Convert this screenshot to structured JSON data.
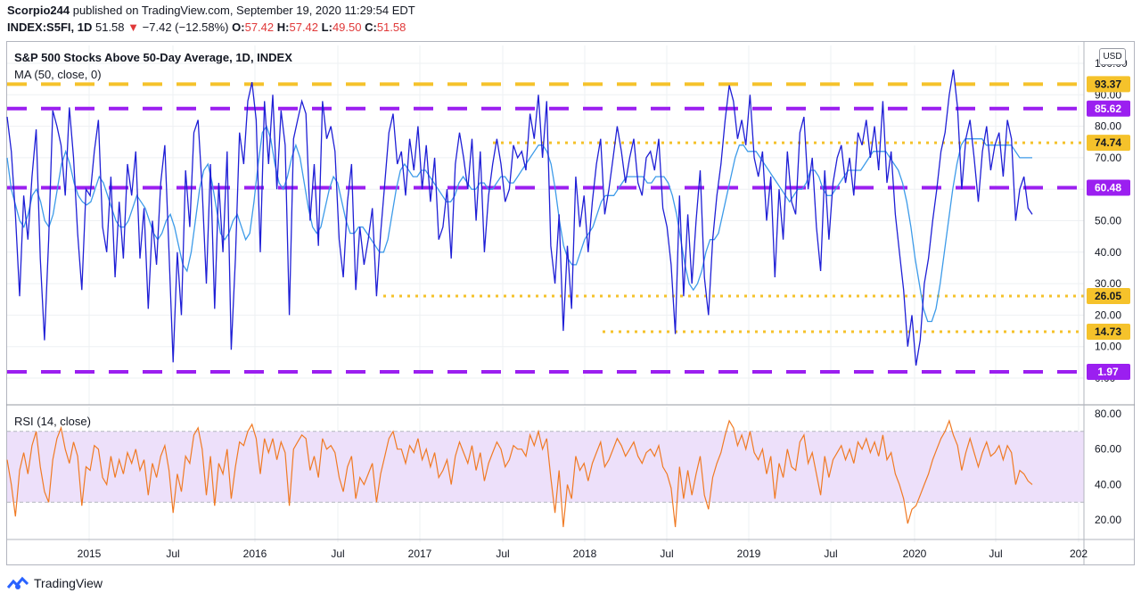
{
  "header": {
    "author": "Scorpio244",
    "published_text": "published on TradingView.com, September 19, 2020 11:29:54 EDT",
    "symbol": "INDEX:S5FI, 1D",
    "last": "51.58",
    "change_arrow": "▼",
    "change": "−7.42 (−12.58%)",
    "o_label": "O:",
    "o": "57.42",
    "h_label": "H:",
    "h": "57.42",
    "l_label": "L:",
    "l": "49.50",
    "c_label": "C:",
    "c": "51.58"
  },
  "legend": {
    "title": "S&P 500 Stocks Above 50-Day Average, 1D, INDEX",
    "ma": "MA (50, close, 0)",
    "rsi": "RSI (14, close)"
  },
  "currency": "USD",
  "footer": {
    "brand": "TradingView"
  },
  "colors": {
    "price": "#1f1fd6",
    "ma": "#3d9be9",
    "rsi": "#f07a24",
    "purple": "#9b1ff0",
    "gold": "#f5c22b",
    "rsi_band": "#ede0fa"
  },
  "chart_data": [
    {
      "type": "line",
      "title": "S&P 500 Stocks Above 50-Day Average, 1D, INDEX",
      "ylim": [
        0,
        100
      ],
      "y_ticks": [
        "100.00",
        "90.00",
        "80.00",
        "70.00",
        "60.00",
        "50.00",
        "40.00",
        "30.00",
        "20.00",
        "10.00",
        "0.00"
      ],
      "x_ticks": [
        "2015",
        "Jul",
        "2016",
        "Jul",
        "2017",
        "Jul",
        "2018",
        "Jul",
        "2019",
        "Jul",
        "2020",
        "Jul",
        "202"
      ],
      "horizontal_levels": [
        {
          "value": 93.37,
          "label": "93.37",
          "color": "#f5c22b",
          "style": "dashed"
        },
        {
          "value": 85.62,
          "label": "85.62",
          "color": "#9b1ff0",
          "style": "dashed"
        },
        {
          "value": 74.74,
          "label": "74.74",
          "color": "#f5c22b",
          "style": "dotted"
        },
        {
          "value": 60.48,
          "label": "60.48",
          "color": "#9b1ff0",
          "style": "dashed"
        },
        {
          "value": 26.05,
          "label": "26.05",
          "color": "#f5c22b",
          "style": "dotted"
        },
        {
          "value": 14.73,
          "label": "14.73",
          "color": "#f5c22b",
          "style": "dotted"
        },
        {
          "value": 1.97,
          "label": "1.97",
          "color": "#9b1ff0",
          "style": "dashed"
        }
      ],
      "series": [
        {
          "values": [
            83,
            72,
            52,
            26,
            58,
            44,
            64,
            79,
            38,
            12,
            44,
            85,
            80,
            74,
            58,
            86,
            70,
            46,
            28,
            60,
            58,
            72,
            82,
            48,
            40,
            64,
            32,
            56,
            38,
            68,
            58,
            72,
            38,
            54,
            22,
            50,
            36,
            62,
            74,
            40,
            5,
            40,
            20,
            66,
            48,
            78,
            82,
            60,
            30,
            68,
            22,
            62,
            40,
            72,
            9,
            38,
            78,
            68,
            88,
            94,
            82,
            40,
            88,
            68,
            90,
            60,
            85,
            74,
            20,
            76,
            82,
            88,
            84,
            50,
            68,
            42,
            88,
            76,
            80,
            72,
            44,
            32,
            56,
            68,
            28,
            48,
            36,
            44,
            54,
            26,
            46,
            62,
            78,
            84,
            68,
            72,
            58,
            76,
            66,
            80,
            60,
            74,
            56,
            70,
            44,
            48,
            60,
            38,
            68,
            78,
            70,
            60,
            76,
            50,
            72,
            40,
            58,
            68,
            76,
            68,
            56,
            60,
            74,
            70,
            72,
            66,
            84,
            76,
            90,
            70,
            88,
            42,
            30,
            52,
            15,
            42,
            22,
            64,
            48,
            58,
            40,
            56,
            68,
            76,
            52,
            60,
            70,
            80,
            72,
            62,
            70,
            76,
            62,
            58,
            70,
            72,
            66,
            76,
            54,
            48,
            36,
            14,
            58,
            26,
            52,
            30,
            50,
            66,
            32,
            20,
            44,
            58,
            68,
            82,
            93,
            88,
            76,
            82,
            74,
            90,
            70,
            64,
            72,
            50,
            64,
            32,
            60,
            44,
            72,
            56,
            52,
            78,
            83,
            60,
            70,
            48,
            34,
            66,
            44,
            62,
            70,
            74,
            62,
            70,
            58,
            78,
            74,
            82,
            70,
            80,
            66,
            88,
            62,
            72,
            52,
            40,
            28,
            10,
            20,
            4,
            12,
            30,
            38,
            50,
            60,
            72,
            78,
            90,
            98,
            86,
            60,
            76,
            82,
            70,
            56,
            72,
            80,
            66,
            74,
            78,
            64,
            82,
            76,
            50,
            60,
            64,
            54,
            52
          ]
        },
        {
          "values": [
            70,
            60,
            55,
            50,
            48,
            52,
            58,
            60,
            56,
            50,
            48,
            52,
            60,
            68,
            72,
            68,
            62,
            58,
            56,
            55,
            56,
            60,
            64,
            62,
            58,
            54,
            50,
            48,
            48,
            50,
            54,
            58,
            56,
            54,
            50,
            46,
            44,
            46,
            50,
            52,
            48,
            42,
            36,
            34,
            40,
            50,
            60,
            66,
            68,
            62,
            54,
            46,
            44,
            46,
            50,
            52,
            48,
            44,
            46,
            56,
            68,
            78,
            80,
            76,
            68,
            62,
            60,
            64,
            70,
            74,
            70,
            62,
            54,
            48,
            46,
            48,
            54,
            60,
            64,
            62,
            56,
            50,
            46,
            46,
            48,
            48,
            46,
            44,
            42,
            40,
            40,
            44,
            52,
            60,
            66,
            68,
            66,
            64,
            64,
            66,
            66,
            64,
            62,
            60,
            58,
            56,
            56,
            58,
            62,
            64,
            62,
            60,
            60,
            62,
            62,
            60,
            60,
            62,
            64,
            64,
            62,
            62,
            64,
            66,
            68,
            70,
            72,
            74,
            74,
            72,
            68,
            60,
            50,
            42,
            38,
            36,
            36,
            40,
            44,
            46,
            48,
            52,
            56,
            58,
            58,
            58,
            60,
            62,
            64,
            64,
            64,
            64,
            64,
            62,
            62,
            64,
            64,
            64,
            62,
            58,
            52,
            44,
            36,
            30,
            28,
            30,
            34,
            40,
            44,
            44,
            46,
            52,
            58,
            64,
            70,
            74,
            74,
            72,
            72,
            72,
            70,
            68,
            66,
            64,
            62,
            60,
            58,
            56,
            58,
            60,
            60,
            62,
            66,
            66,
            64,
            60,
            58,
            58,
            60,
            62,
            64,
            66,
            66,
            66,
            66,
            68,
            70,
            72,
            72,
            72,
            72,
            70,
            68,
            66,
            62,
            56,
            48,
            38,
            30,
            22,
            18,
            18,
            22,
            30,
            40,
            50,
            60,
            68,
            74,
            76,
            76,
            76,
            76,
            76,
            74,
            74,
            74,
            74,
            74,
            74,
            74,
            72,
            70,
            70,
            70,
            70
          ]
        }
      ]
    },
    {
      "type": "line",
      "title": "RSI (14, close)",
      "ylim": [
        10,
        84
      ],
      "y_ticks": [
        "80.00",
        "60.00",
        "40.00",
        "20.00"
      ],
      "bands": [
        70,
        30
      ],
      "series": [
        {
          "values": [
            54,
            40,
            22,
            48,
            58,
            46,
            62,
            70,
            50,
            36,
            30,
            54,
            66,
            72,
            60,
            52,
            64,
            56,
            28,
            50,
            48,
            62,
            60,
            44,
            40,
            56,
            44,
            54,
            46,
            58,
            52,
            60,
            48,
            54,
            34,
            52,
            44,
            56,
            62,
            48,
            24,
            46,
            36,
            56,
            52,
            68,
            72,
            60,
            34,
            56,
            28,
            52,
            46,
            60,
            32,
            50,
            64,
            62,
            70,
            74,
            66,
            46,
            66,
            58,
            66,
            54,
            64,
            58,
            28,
            60,
            64,
            68,
            66,
            48,
            56,
            44,
            66,
            60,
            62,
            58,
            44,
            36,
            50,
            56,
            32,
            44,
            40,
            46,
            52,
            30,
            46,
            56,
            66,
            70,
            60,
            60,
            52,
            62,
            58,
            66,
            54,
            60,
            50,
            58,
            44,
            48,
            54,
            40,
            56,
            64,
            58,
            52,
            62,
            48,
            58,
            42,
            52,
            58,
            64,
            60,
            50,
            54,
            62,
            60,
            60,
            56,
            68,
            62,
            70,
            60,
            66,
            44,
            24,
            48,
            16,
            40,
            32,
            56,
            48,
            52,
            42,
            52,
            58,
            64,
            50,
            54,
            60,
            66,
            62,
            56,
            60,
            64,
            56,
            52,
            58,
            60,
            56,
            62,
            50,
            46,
            38,
            16,
            50,
            32,
            48,
            34,
            46,
            56,
            34,
            26,
            44,
            52,
            58,
            68,
            76,
            72,
            62,
            68,
            60,
            70,
            58,
            54,
            60,
            46,
            56,
            32,
            52,
            44,
            60,
            50,
            48,
            64,
            68,
            52,
            58,
            46,
            34,
            56,
            44,
            54,
            58,
            62,
            54,
            60,
            52,
            64,
            60,
            66,
            58,
            64,
            56,
            68,
            54,
            58,
            46,
            40,
            32,
            18,
            26,
            28,
            34,
            40,
            46,
            54,
            60,
            66,
            70,
            76,
            68,
            62,
            48,
            58,
            66,
            58,
            50,
            58,
            64,
            56,
            58,
            62,
            54,
            62,
            58,
            40,
            48,
            46,
            42,
            40
          ]
        }
      ]
    }
  ]
}
